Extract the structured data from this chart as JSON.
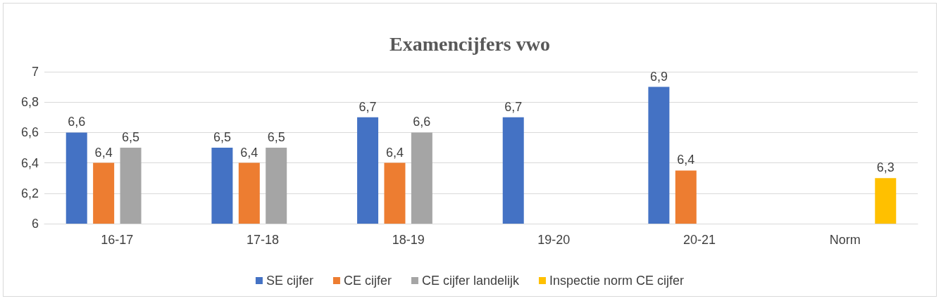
{
  "chart_data": {
    "type": "bar",
    "title": "Examencijfers vwo",
    "categories": [
      "16-17",
      "17-18",
      "18-19",
      "19-20",
      "20-21",
      "Norm"
    ],
    "series": [
      {
        "name": "SE cijfer",
        "color": "#4472c4",
        "values": [
          6.6,
          6.5,
          6.7,
          6.7,
          6.9,
          null
        ],
        "value_labels": [
          "6,6",
          "6,5",
          "6,7",
          "6,7",
          "6,9",
          null
        ]
      },
      {
        "name": "CE cijfer",
        "color": "#ed7d31",
        "values": [
          6.4,
          6.4,
          6.4,
          null,
          6.35,
          null
        ],
        "value_labels": [
          "6,4",
          "6,4",
          "6,4",
          null,
          "6,4",
          null
        ]
      },
      {
        "name": "CE cijfer landelijk",
        "color": "#a5a5a5",
        "values": [
          6.5,
          6.5,
          6.6,
          null,
          null,
          null
        ],
        "value_labels": [
          "6,5",
          "6,5",
          "6,6",
          null,
          null,
          null
        ]
      },
      {
        "name": "Inspectie norm CE cijfer",
        "color": "#ffc000",
        "values": [
          null,
          null,
          null,
          null,
          null,
          6.3
        ],
        "value_labels": [
          null,
          null,
          null,
          null,
          null,
          "6,3"
        ]
      }
    ],
    "ylim": [
      6,
      7
    ],
    "yticks": [
      6,
      {
        "value": 6.2,
        "label": "6,2"
      },
      {
        "value": 6.4,
        "label": "6,4"
      },
      {
        "value": 6.6,
        "label": "6,6"
      },
      {
        "value": 6.8,
        "label": "6,8"
      },
      7
    ],
    "grid": "y",
    "legend": "bottom"
  }
}
